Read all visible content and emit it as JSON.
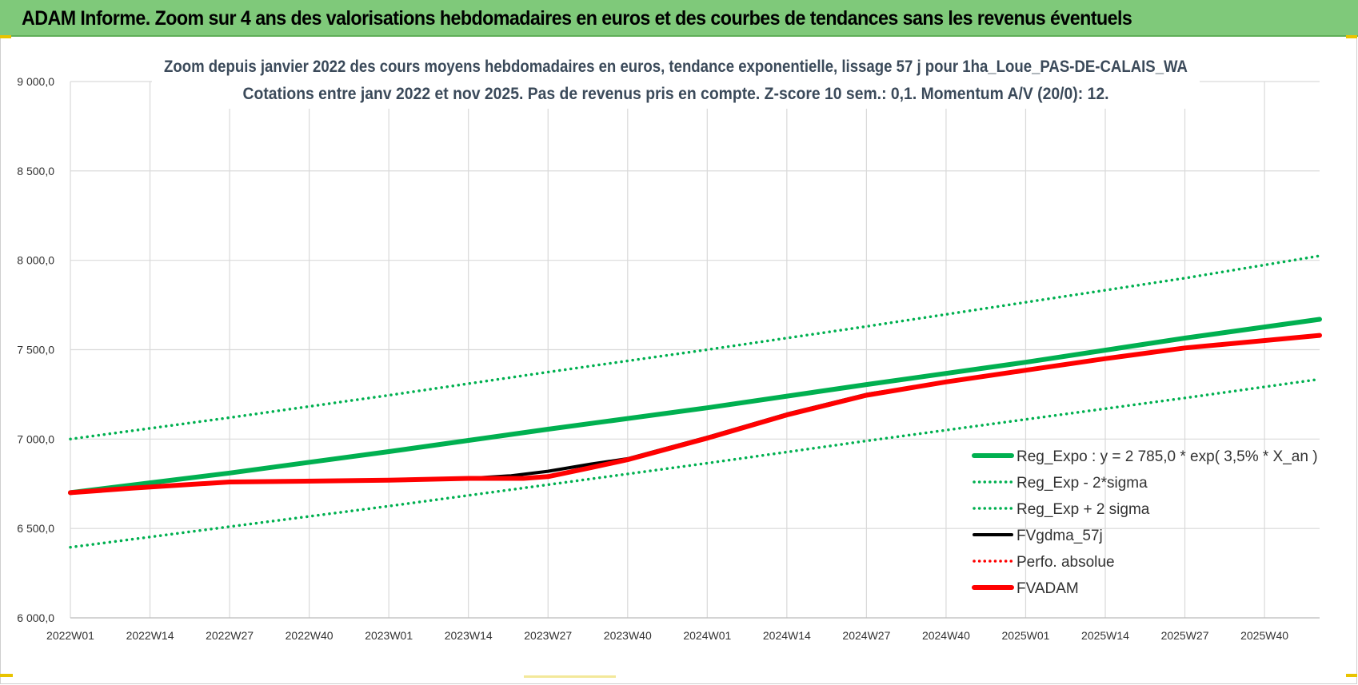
{
  "banner": {
    "title": "ADAM Informe. Zoom sur 4 ans des valorisations hebdomadaires en euros et des courbes de tendances sans les revenus éventuels"
  },
  "chart_data": {
    "type": "line",
    "title": "Zoom depuis janvier 2022 des cours moyens hebdomadaires en euros, tendance exponentielle, lissage 57 j pour 1ha_Loue_PAS-DE-CALAIS_WA",
    "subtitle": "Cotations entre janv 2022 et nov 2025. Pas de revenus pris en compte. Z-score 10 sem.: 0,1. Momentum A/V (20/0): 12.",
    "xlabel": "",
    "ylabel": "",
    "ylim": [
      6000,
      9000
    ],
    "yticks": [
      "6 000,0",
      "6 500,0",
      "7 000,0",
      "7 500,0",
      "8 000,0",
      "8 500,0",
      "9 000,0"
    ],
    "ytick_values": [
      6000,
      6500,
      7000,
      7500,
      8000,
      8500,
      9000
    ],
    "x_range_weeks": [
      0,
      204
    ],
    "xticks": [
      "2022W01",
      "2022W14",
      "2022W27",
      "2022W40",
      "2023W01",
      "2023W14",
      "2023W27",
      "2023W40",
      "2024W01",
      "2024W14",
      "2024W27",
      "2024W40",
      "2025W01",
      "2025W14",
      "2025W27",
      "2025W40"
    ],
    "xtick_weeks": [
      0,
      13,
      26,
      39,
      52,
      65,
      78,
      91,
      104,
      117,
      130,
      143,
      156,
      169,
      182,
      195
    ],
    "grid": true,
    "legend_position": "bottom-right",
    "series": [
      {
        "name": "Reg_Expo : y = 2 785,0 * exp( 3,5% *  X_an )",
        "color": "#00b050",
        "style": "solid",
        "width": 6,
        "x": [
          0,
          26,
          52,
          78,
          104,
          130,
          156,
          182,
          204
        ],
        "values": [
          6700,
          6810,
          6930,
          7055,
          7175,
          7305,
          7430,
          7565,
          7670
        ]
      },
      {
        "name": "Reg_Exp - 2*sigma",
        "color": "#00b050",
        "style": "dotted",
        "width": 3.5,
        "x": [
          0,
          26,
          52,
          78,
          104,
          130,
          156,
          182,
          204
        ],
        "values": [
          6395,
          6510,
          6625,
          6745,
          6865,
          6990,
          7110,
          7230,
          7335
        ]
      },
      {
        "name": "Reg_Exp + 2 sigma",
        "color": "#00b050",
        "style": "dotted",
        "width": 3.5,
        "x": [
          0,
          26,
          52,
          78,
          104,
          130,
          156,
          182,
          204
        ],
        "values": [
          7000,
          7120,
          7245,
          7375,
          7500,
          7630,
          7765,
          7900,
          8025
        ]
      },
      {
        "name": "FVgdma_57j",
        "color": "#000000",
        "style": "solid",
        "width": 4,
        "x": [
          0,
          10,
          26,
          52,
          65,
          72,
          78,
          85,
          91,
          104,
          117,
          130,
          143,
          156,
          169,
          182,
          204
        ],
        "values": [
          6700,
          6725,
          6760,
          6770,
          6780,
          6795,
          6820,
          6860,
          6890,
          7010,
          7140,
          7250,
          7320,
          7385,
          7450,
          7510,
          7580
        ]
      },
      {
        "name": "Perfo. absolue",
        "color": "#ff0000",
        "style": "dotted",
        "width": 3.5,
        "x": [],
        "values": []
      },
      {
        "name": "FVADAM",
        "color": "#ff0000",
        "style": "solid",
        "width": 6,
        "x": [
          0,
          10,
          26,
          52,
          65,
          74,
          78,
          85,
          91,
          104,
          117,
          130,
          143,
          156,
          169,
          182,
          204
        ],
        "values": [
          6700,
          6725,
          6760,
          6770,
          6780,
          6780,
          6790,
          6840,
          6885,
          7005,
          7135,
          7245,
          7320,
          7385,
          7450,
          7510,
          7580
        ]
      }
    ]
  }
}
